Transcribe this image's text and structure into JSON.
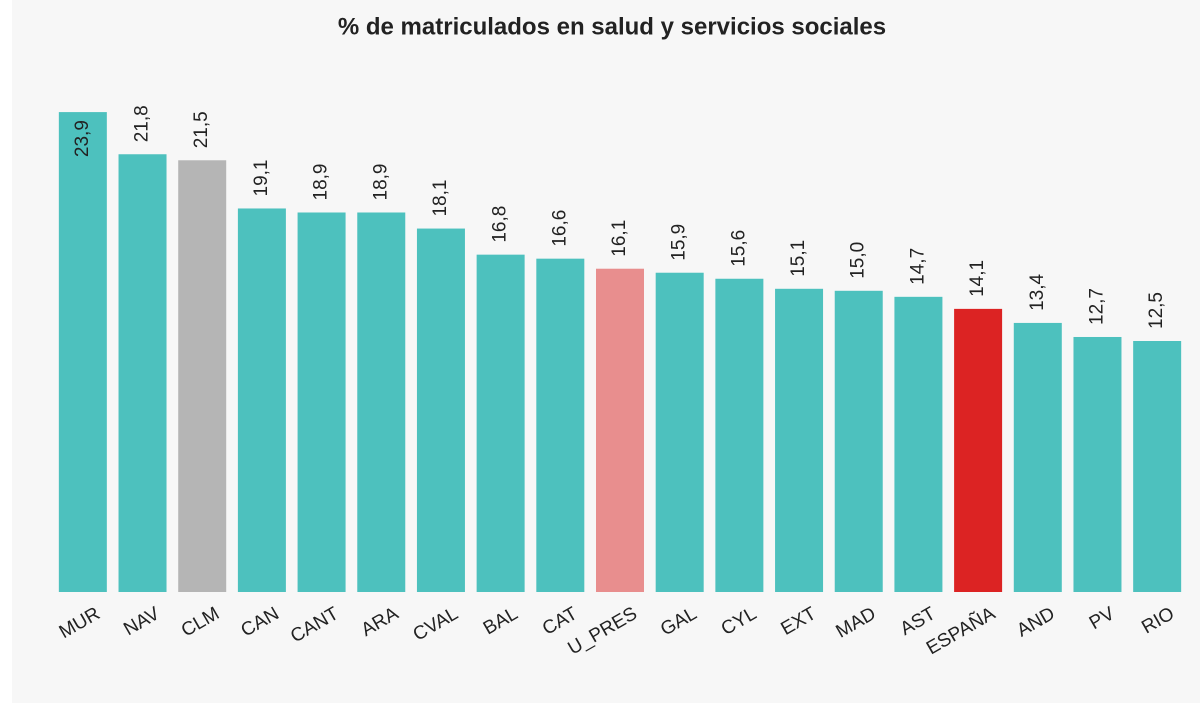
{
  "chart_data": {
    "type": "bar",
    "title": "% de matriculados en salud y servicios sociales",
    "categories": [
      "MUR",
      "NAV",
      "CLM",
      "CAN",
      "CANT",
      "ARA",
      "CVAL",
      "BAL",
      "CAT",
      "U_PRES",
      "GAL",
      "CYL",
      "EXT",
      "MAD",
      "AST",
      "ESPAÑA",
      "AND",
      "PV",
      "RIO"
    ],
    "values": [
      23.9,
      21.8,
      21.5,
      19.1,
      18.9,
      18.9,
      18.1,
      16.8,
      16.6,
      16.1,
      15.9,
      15.6,
      15.1,
      15.0,
      14.7,
      14.1,
      13.4,
      12.7,
      12.5
    ],
    "value_labels": [
      "23,9",
      "21,8",
      "21,5",
      "19,1",
      "18,9",
      "18,9",
      "18,1",
      "16,8",
      "16,6",
      "16,1",
      "15,9",
      "15,6",
      "15,1",
      "15,0",
      "14,7",
      "14,1",
      "13,4",
      "12,7",
      "12,5"
    ],
    "colors": [
      "#4dc1be",
      "#4dc1be",
      "#b5b5b5",
      "#4dc1be",
      "#4dc1be",
      "#4dc1be",
      "#4dc1be",
      "#4dc1be",
      "#4dc1be",
      "#e88e8e",
      "#4dc1be",
      "#4dc1be",
      "#4dc1be",
      "#4dc1be",
      "#4dc1be",
      "#dc2323",
      "#4dc1be",
      "#4dc1be",
      "#4dc1be"
    ],
    "ylim": [
      0,
      25
    ]
  }
}
